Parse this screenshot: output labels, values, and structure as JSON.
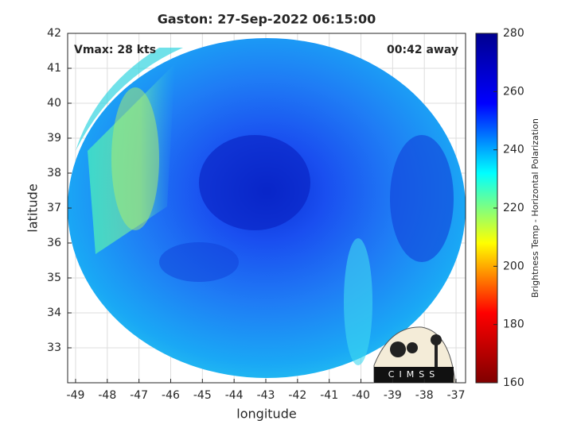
{
  "chart_data": {
    "type": "image-map",
    "title": "Gaston: 27-Sep-2022 06:15:00",
    "xlabel": "longitude",
    "ylabel": "latitude",
    "annotations": [
      "Vmax: 28 kts",
      "00:42 away"
    ],
    "logo_text": "CIMSS",
    "xlim": [
      -49.25,
      -36.7
    ],
    "xticks": [
      -49,
      -48,
      -47,
      -46,
      -45,
      -44,
      -43,
      -42,
      -41,
      -40,
      -39,
      -38,
      -37
    ],
    "ylim": [
      32,
      42
    ],
    "yticks": [
      33,
      34,
      35,
      36,
      37,
      38,
      39,
      40,
      41,
      42
    ],
    "grid": true,
    "colorbar": {
      "label": "Brightness Temp - Horizontal Polarization",
      "clim": [
        160,
        280
      ],
      "ticks": [
        160,
        180,
        200,
        220,
        240,
        260,
        280
      ],
      "colormap": [
        "#800000",
        "#ff0000",
        "#ffff00",
        "#00ffff",
        "#0000ff",
        "#00008f"
      ]
    }
  }
}
